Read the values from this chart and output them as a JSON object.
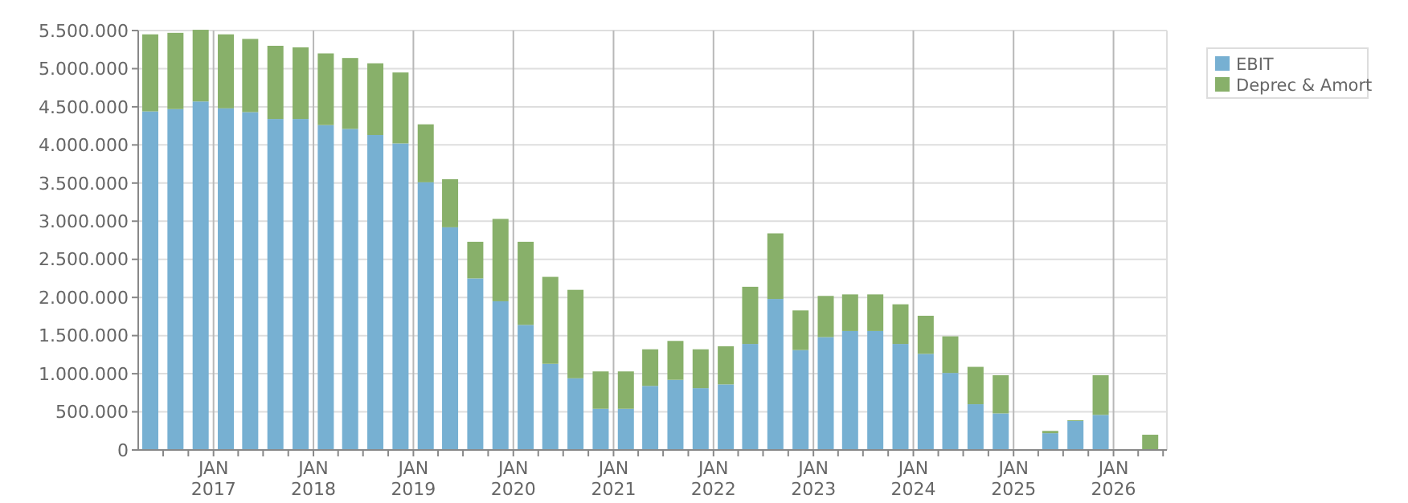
{
  "chart_data": {
    "type": "bar",
    "stacked": true,
    "x": [
      "2016-05-15",
      "2016-08-15",
      "2016-11-15",
      "2017-02-15",
      "2017-05-15",
      "2017-08-15",
      "2017-11-15",
      "2018-02-15",
      "2018-05-15",
      "2018-08-15",
      "2018-11-15",
      "2019-02-15",
      "2019-05-15",
      "2019-08-15",
      "2019-11-15",
      "2020-02-15",
      "2020-05-15",
      "2020-08-15",
      "2020-11-15",
      "2021-02-15",
      "2021-05-15",
      "2021-08-15",
      "2021-11-15",
      "2022-02-15",
      "2022-05-15",
      "2022-08-15",
      "2022-11-15",
      "2023-02-15",
      "2023-05-15",
      "2023-08-15",
      "2023-11-15",
      "2024-02-15",
      "2024-05-15",
      "2024-08-15",
      "2024-11-15",
      "2025-05-15",
      "2025-08-15",
      "2025-11-15",
      "2026-05-15"
    ],
    "series": [
      {
        "name": "EBIT",
        "color": "#77b0d2",
        "values": [
          4440000,
          4470000,
          4570000,
          4480000,
          4430000,
          4340000,
          4340000,
          4260000,
          4210000,
          4130000,
          4020000,
          3510000,
          2920000,
          2250000,
          1950000,
          1640000,
          1130000,
          940000,
          540000,
          540000,
          840000,
          920000,
          810000,
          860000,
          1390000,
          1980000,
          1310000,
          1480000,
          1560000,
          1560000,
          1390000,
          1260000,
          1010000,
          600000,
          480000,
          220000,
          380000,
          460000,
          0
        ]
      },
      {
        "name": "Deprec & Amort",
        "color": "#88b06a",
        "values": [
          1010000,
          1000000,
          940000,
          970000,
          960000,
          960000,
          940000,
          940000,
          930000,
          940000,
          930000,
          760000,
          630000,
          480000,
          1080000,
          1090000,
          1140000,
          1160000,
          490000,
          490000,
          480000,
          510000,
          510000,
          500000,
          750000,
          860000,
          520000,
          540000,
          480000,
          480000,
          520000,
          500000,
          480000,
          490000,
          500000,
          30000,
          10000,
          520000,
          200000
        ]
      }
    ],
    "xlim": [
      "2016-04-01",
      "2026-07-15"
    ],
    "xticks": [
      {
        "value": "2016-07-01",
        "label": null
      },
      {
        "value": "2016-10-01",
        "label": null
      },
      {
        "value": "2017-01-01",
        "label": "JAN\n2017"
      },
      {
        "value": "2017-04-01",
        "label": null
      },
      {
        "value": "2017-07-01",
        "label": null
      },
      {
        "value": "2017-10-01",
        "label": null
      },
      {
        "value": "2018-01-01",
        "label": "JAN\n2018"
      },
      {
        "value": "2018-04-01",
        "label": null
      },
      {
        "value": "2018-07-01",
        "label": null
      },
      {
        "value": "2018-10-01",
        "label": null
      },
      {
        "value": "2019-01-01",
        "label": "JAN\n2019"
      },
      {
        "value": "2019-04-01",
        "label": null
      },
      {
        "value": "2019-07-01",
        "label": null
      },
      {
        "value": "2019-10-01",
        "label": null
      },
      {
        "value": "2020-01-01",
        "label": "JAN\n2020"
      },
      {
        "value": "2020-04-01",
        "label": null
      },
      {
        "value": "2020-07-01",
        "label": null
      },
      {
        "value": "2020-10-01",
        "label": null
      },
      {
        "value": "2021-01-01",
        "label": "JAN\n2021"
      },
      {
        "value": "2021-04-01",
        "label": null
      },
      {
        "value": "2021-07-01",
        "label": null
      },
      {
        "value": "2021-10-01",
        "label": null
      },
      {
        "value": "2022-01-01",
        "label": "JAN\n2022"
      },
      {
        "value": "2022-04-01",
        "label": null
      },
      {
        "value": "2022-07-01",
        "label": null
      },
      {
        "value": "2022-10-01",
        "label": null
      },
      {
        "value": "2023-01-01",
        "label": "JAN\n2023"
      },
      {
        "value": "2023-04-01",
        "label": null
      },
      {
        "value": "2023-07-01",
        "label": null
      },
      {
        "value": "2023-10-01",
        "label": null
      },
      {
        "value": "2024-01-01",
        "label": "JAN\n2024"
      },
      {
        "value": "2024-04-01",
        "label": null
      },
      {
        "value": "2024-07-01",
        "label": null
      },
      {
        "value": "2024-10-01",
        "label": null
      },
      {
        "value": "2025-01-01",
        "label": "JAN\n2025"
      },
      {
        "value": "2025-04-01",
        "label": null
      },
      {
        "value": "2025-07-01",
        "label": null
      },
      {
        "value": "2025-10-01",
        "label": null
      },
      {
        "value": "2026-01-01",
        "label": "JAN\n2026"
      },
      {
        "value": "2026-04-01",
        "label": null
      },
      {
        "value": "2026-07-01",
        "label": null
      }
    ],
    "ylim": [
      0,
      5500000
    ],
    "yticks": [
      {
        "value": 0,
        "label": "0"
      },
      {
        "value": 500000,
        "label": "500.000"
      },
      {
        "value": 1000000,
        "label": "1.000.000"
      },
      {
        "value": 1500000,
        "label": "1.500.000"
      },
      {
        "value": 2000000,
        "label": "2.000.000"
      },
      {
        "value": 2500000,
        "label": "2.500.000"
      },
      {
        "value": 3000000,
        "label": "3.000.000"
      },
      {
        "value": 3500000,
        "label": "3.500.000"
      },
      {
        "value": 4000000,
        "label": "4.000.000"
      },
      {
        "value": 4500000,
        "label": "4.500.000"
      },
      {
        "value": 5000000,
        "label": "5.000.000"
      },
      {
        "value": 5500000,
        "label": "5.500.000"
      }
    ],
    "grid": true,
    "legend": "top right"
  }
}
